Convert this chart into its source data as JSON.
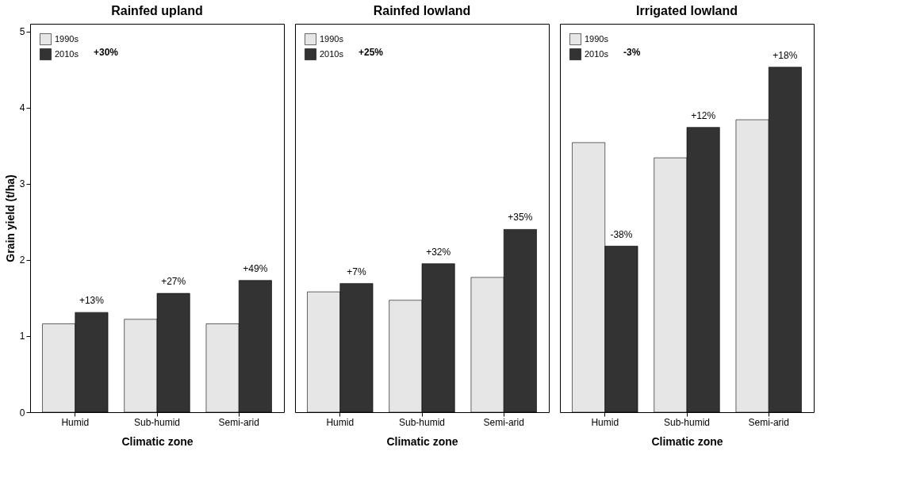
{
  "chart_data": [
    {
      "type": "bar",
      "title": "Rainfed upland",
      "xlabel": "Climatic zone",
      "ylabel": "Grain yield (t/ha)",
      "categories": [
        "Humid",
        "Sub-humid",
        "Semi-arid"
      ],
      "series": [
        {
          "name": "1990s",
          "color": "#e6e6e6",
          "values": [
            1.16,
            1.22,
            1.16
          ]
        },
        {
          "name": "2010s",
          "color": "#333333",
          "values": [
            1.31,
            1.56,
            1.73
          ]
        }
      ],
      "ylim": [
        0,
        5.1
      ],
      "yticks": [
        0,
        1,
        2,
        3,
        4,
        5
      ],
      "legend": "top left",
      "grid": false,
      "annotations": [
        "+30%",
        {
          "text": "+13%",
          "x": "Humid",
          "y": 1.31
        },
        {
          "text": "+27%",
          "x": "Sub-humid",
          "y": 1.56
        },
        {
          "text": "+49%",
          "x": "Semi-arid",
          "y": 1.73
        }
      ]
    },
    {
      "type": "bar",
      "title": "Rainfed lowland",
      "xlabel": "Climatic zone",
      "categories": [
        "Humid",
        "Sub-humid",
        "Semi-arid"
      ],
      "series": [
        {
          "name": "1990s",
          "color": "#e6e6e6",
          "values": [
            1.58,
            1.47,
            1.77
          ]
        },
        {
          "name": "2010s",
          "color": "#333333",
          "values": [
            1.69,
            1.95,
            2.4
          ]
        }
      ],
      "ylim": [
        0,
        5.1
      ],
      "yticks": [
        0,
        1,
        2,
        3,
        4,
        5
      ],
      "tick_labels": "x",
      "legend": "top left",
      "grid": false,
      "annotations": [
        "+25%",
        {
          "text": "+7%",
          "x": "Humid",
          "y": 1.69
        },
        {
          "text": "+32%",
          "x": "Sub-humid",
          "y": 1.95
        },
        {
          "text": "+35%",
          "x": "Semi-arid",
          "y": 2.4
        }
      ]
    },
    {
      "type": "bar",
      "title": "Irrigated lowland",
      "xlabel": "Climatic zone",
      "categories": [
        "Humid",
        "Sub-humid",
        "Semi-arid"
      ],
      "series": [
        {
          "name": "1990s",
          "color": "#e6e6e6",
          "values": [
            3.54,
            3.34,
            3.84
          ]
        },
        {
          "name": "2010s",
          "color": "#333333",
          "values": [
            2.18,
            3.74,
            4.53
          ]
        }
      ],
      "ylim": [
        0,
        5.1
      ],
      "yticks": [
        0,
        1,
        2,
        3,
        4,
        5
      ],
      "tick_labels": "x",
      "legend": "top left",
      "grid": false,
      "annotations": [
        "-3%",
        {
          "text": "-38%",
          "x": "Humid",
          "y": 2.18
        },
        {
          "text": "+12%",
          "x": "Sub-humid",
          "y": 3.74
        },
        {
          "text": "+18%",
          "x": "Semi-arid",
          "y": 4.53
        }
      ]
    }
  ]
}
